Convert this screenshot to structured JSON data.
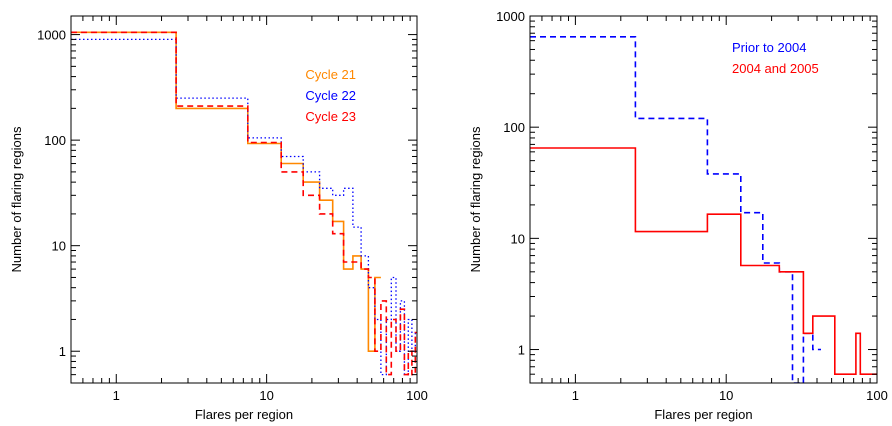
{
  "chart_data": [
    {
      "type": "line",
      "xscale": "log",
      "yscale": "log",
      "xlim": [
        0.5,
        100
      ],
      "ylim": [
        0.5,
        1500
      ],
      "xlabel": "Flares per region",
      "ylabel": "Number of flaring regions",
      "xticks": [
        {
          "v": 1,
          "label": "1"
        },
        {
          "v": 10,
          "label": "10"
        },
        {
          "v": 100,
          "label": "100"
        }
      ],
      "yticks": [
        {
          "v": 1,
          "label": "1"
        },
        {
          "v": 10,
          "label": "10"
        },
        {
          "v": 100,
          "label": "100"
        },
        {
          "v": 1000,
          "label": "1000"
        }
      ],
      "legend_position": "upper-right",
      "series": [
        {
          "name": "Cycle 21",
          "color": "#ff8800",
          "dash": "solid",
          "edges": [
            0.5,
            2.5,
            7.5,
            12.5,
            17.5,
            22.5,
            27.5,
            32.5,
            37.5,
            42.5,
            47.5,
            52.5,
            57.5
          ],
          "values": [
            1050,
            200,
            93,
            60,
            40,
            27,
            17,
            6,
            8,
            6,
            1,
            5
          ]
        },
        {
          "name": "Cycle 22",
          "color": "#0000ff",
          "dash": "dotted",
          "edges": [
            0.5,
            2.5,
            7.5,
            12.5,
            17.5,
            22.5,
            27.5,
            32.5,
            37.5,
            42.5,
            47.5,
            52.5,
            57.5,
            62.5,
            67.5,
            72.5,
            77.5,
            82.5,
            87.5,
            92.5,
            97.5,
            100
          ],
          "values": [
            900,
            250,
            105,
            70,
            50,
            35,
            30,
            35,
            15,
            8,
            4,
            2,
            0.6,
            2,
            5,
            1,
            3,
            0.6,
            2,
            1,
            1.5
          ]
        },
        {
          "name": "Cycle 23",
          "color": "#ff0000",
          "dash": "dashed",
          "edges": [
            0.5,
            2.5,
            7.5,
            12.5,
            17.5,
            22.5,
            27.5,
            32.5,
            37.5,
            42.5,
            47.5,
            52.5,
            57.5,
            62.5,
            67.5,
            72.5,
            77.5,
            82.5,
            87.5,
            92.5,
            97.5,
            100
          ],
          "values": [
            1050,
            210,
            95,
            50,
            30,
            20,
            13,
            7,
            7,
            6,
            5,
            1,
            3,
            0.6,
            2,
            1,
            2.5,
            0.6,
            1,
            0.6,
            1.5
          ]
        }
      ]
    },
    {
      "type": "line",
      "xscale": "log",
      "yscale": "log",
      "xlim": [
        0.5,
        100
      ],
      "ylim": [
        0.5,
        1000
      ],
      "xlabel": "Flares per region",
      "ylabel": "Number of flaring regions",
      "xticks": [
        {
          "v": 1,
          "label": "1"
        },
        {
          "v": 10,
          "label": "10"
        },
        {
          "v": 100,
          "label": "100"
        }
      ],
      "yticks": [
        {
          "v": 1,
          "label": "1"
        },
        {
          "v": 10,
          "label": "10"
        },
        {
          "v": 100,
          "label": "100"
        },
        {
          "v": 1000,
          "label": "1000"
        }
      ],
      "legend_position": "upper-right",
      "series": [
        {
          "name": "Prior to 2004",
          "color": "#0000ff",
          "dash": "dashed",
          "edges": [
            0.5,
            2.5,
            7.5,
            12.5,
            17.5,
            22.5,
            27.5,
            32.5,
            37.5,
            42.5
          ],
          "values": [
            650,
            120,
            38,
            17,
            6,
            5,
            0.5,
            1.4,
            1
          ]
        },
        {
          "name": "2004 and 2005",
          "color": "#ff0000",
          "dash": "solid",
          "edges": [
            0.5,
            2.5,
            7.5,
            12.5,
            22.5,
            27.5,
            32.5,
            37.5,
            42.5,
            52.5,
            57.5,
            62.5,
            67.5,
            72.5,
            77.5,
            82.5,
            87.5,
            92.5,
            97.5,
            100
          ],
          "values": [
            65,
            11.5,
            16.5,
            5.7,
            5,
            5,
            1.4,
            2,
            2,
            0.6,
            0.6,
            0.6,
            0.6,
            1.4,
            0.6,
            0.6,
            0.6,
            0.6,
            0.6
          ]
        }
      ]
    }
  ]
}
